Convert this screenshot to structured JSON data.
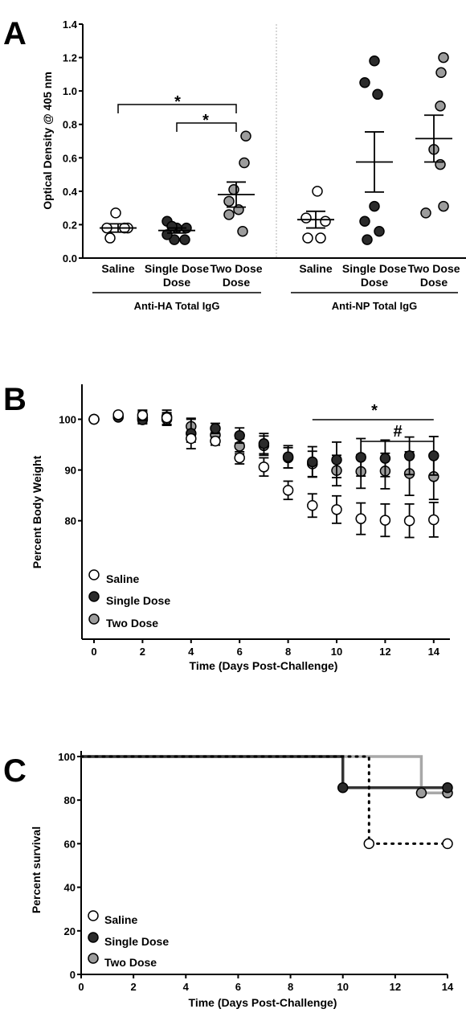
{
  "panels": {
    "a": "A",
    "b": "B",
    "c": "C"
  },
  "colors": {
    "saline": "#ffffff",
    "single": "#2b2b2b",
    "two": "#9c9c9c",
    "two_line": "#a8a8a8",
    "single_line": "#333333",
    "stroke": "#000000"
  },
  "chart_data": [
    {
      "panel": "A",
      "type": "scatter",
      "ylabel": "Optical Density @ 405 nm",
      "ylim": [
        0,
        1.4
      ],
      "yticks": [
        "0.0",
        "0.2",
        "0.4",
        "0.6",
        "0.8",
        "1.0",
        "1.2",
        "1.4"
      ],
      "groups": [
        {
          "label": "Anti-HA Total IgG",
          "categories": [
            {
              "label": "Saline",
              "values": [
                0.27,
                0.18,
                0.18,
                0.12,
                0.18
              ],
              "mean": 0.18,
              "sem": 0.025
            },
            {
              "label": "Single Dose",
              "values": [
                0.22,
                0.18,
                0.18,
                0.19,
                0.11,
                0.11,
                0.14
              ],
              "mean": 0.165,
              "sem": 0.015
            },
            {
              "label": "Two Dose",
              "values": [
                0.73,
                0.57,
                0.41,
                0.34,
                0.29,
                0.26,
                0.16
              ],
              "mean": 0.38,
              "sem": 0.075
            }
          ]
        },
        {
          "label": "Anti-NP Total IgG",
          "categories": [
            {
              "label": "Saline",
              "values": [
                0.4,
                0.22,
                0.24,
                0.12,
                0.12
              ],
              "mean": 0.23,
              "sem": 0.05
            },
            {
              "label": "Single Dose",
              "values": [
                1.18,
                1.05,
                0.98,
                0.31,
                0.22,
                0.16,
                0.11
              ],
              "mean": 0.575,
              "sem": 0.18
            },
            {
              "label": "Two Dose",
              "values": [
                1.2,
                1.11,
                0.91,
                0.65,
                0.56,
                0.31,
                0.27
              ],
              "mean": 0.715,
              "sem": 0.14
            }
          ]
        }
      ],
      "annotations": [
        {
          "label": "*",
          "from": "Saline",
          "to": "Two Dose",
          "group": "Anti-HA Total IgG"
        },
        {
          "label": "*",
          "from": "Single Dose",
          "to": "Two Dose",
          "group": "Anti-HA Total IgG"
        }
      ]
    },
    {
      "panel": "B",
      "type": "scatter",
      "xlabel": "Time (Days Post-Challenge)",
      "ylabel": "Percent Body Weight",
      "xlim": [
        -1,
        14.5
      ],
      "ylim": [
        70,
        105
      ],
      "xticks": [
        "0",
        "2",
        "4",
        "6",
        "8",
        "10",
        "12",
        "14"
      ],
      "yticks": [
        "80",
        "90",
        "100"
      ],
      "x": [
        0,
        1,
        2,
        3,
        4,
        5,
        6,
        7,
        8,
        9,
        10,
        11,
        12,
        13,
        14
      ],
      "series": [
        {
          "name": "Saline",
          "values": [
            100,
            100.9,
            100.8,
            100.3,
            96.2,
            95.7,
            92.4,
            90.6,
            86.0,
            83.0,
            82.2,
            80.4,
            80.1,
            80.0,
            80.2
          ],
          "err": [
            0,
            0.3,
            1.0,
            1.5,
            0.7,
            0.8,
            1.2,
            1.8,
            1.8,
            2.3,
            2.7,
            3.1,
            3.2,
            3.3,
            3.4
          ]
        },
        {
          "name": "Single Dose",
          "values": [
            100,
            100.4,
            99.9,
            100.5,
            97.2,
            98.2,
            96.8,
            95.2,
            92.6,
            91.6,
            92.0,
            92.5,
            92.3,
            92.8,
            92.8
          ],
          "err": [
            0,
            0.3,
            0.6,
            0.8,
            3.0,
            1.0,
            1.5,
            2.0,
            2.2,
            3.0,
            3.5,
            3.7,
            3.6,
            3.7,
            3.8
          ]
        },
        {
          "name": "Two Dose",
          "values": [
            100,
            100.6,
            100.3,
            100.0,
            98.6,
            96.9,
            94.7,
            94.8,
            92.4,
            91.2,
            89.9,
            89.7,
            89.8,
            89.3,
            88.7
          ],
          "err": [
            0,
            0.4,
            1.2,
            1.0,
            1.4,
            1.3,
            1.5,
            1.9,
            2.0,
            2.5,
            3.0,
            3.3,
            3.5,
            4.3,
            4.5
          ]
        }
      ],
      "annotations": [
        {
          "label": "*",
          "x_from": 9,
          "x_to": 14
        },
        {
          "label": "#",
          "x_from": 11,
          "x_to": 14
        }
      ],
      "legend": "bottom-left"
    },
    {
      "panel": "C",
      "type": "line",
      "xlabel": "Time (Days Post-Challenge)",
      "ylabel": "Percent survival",
      "xlim": [
        0,
        14
      ],
      "ylim": [
        0,
        105
      ],
      "xticks": [
        "0",
        "2",
        "4",
        "6",
        "8",
        "10",
        "12",
        "14"
      ],
      "yticks": [
        "0",
        "20",
        "40",
        "60",
        "80",
        "100"
      ],
      "series": [
        {
          "name": "Saline",
          "style": "dotted",
          "steps": [
            [
              0,
              100
            ],
            [
              11,
              100
            ],
            [
              11,
              60
            ],
            [
              14,
              60
            ]
          ],
          "markers": [
            [
              11,
              60
            ],
            [
              14,
              60
            ]
          ]
        },
        {
          "name": "Single Dose",
          "style": "solid",
          "steps": [
            [
              0,
              100
            ],
            [
              10,
              100
            ],
            [
              10,
              85.7
            ],
            [
              14,
              85.7
            ]
          ],
          "markers": [
            [
              10,
              85.7
            ],
            [
              14,
              85.7
            ]
          ]
        },
        {
          "name": "Two Dose",
          "style": "solid",
          "steps": [
            [
              0,
              100
            ],
            [
              13,
              100
            ],
            [
              13,
              83.3
            ],
            [
              14,
              83.3
            ]
          ],
          "markers": [
            [
              13,
              83.3
            ],
            [
              14,
              83.3
            ]
          ]
        }
      ],
      "legend": "bottom-left"
    }
  ]
}
